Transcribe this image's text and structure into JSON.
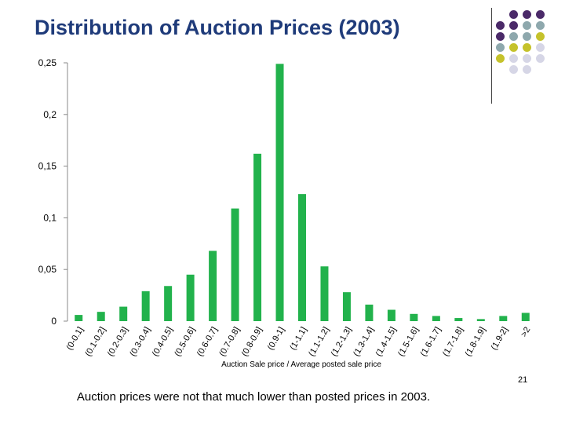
{
  "slide": {
    "title": "Distribution of Auction Prices (2003)",
    "caption": "Auction prices were not that much lower than posted prices in 2003.",
    "page_number": "21"
  },
  "colors": {
    "bar": "#22b24c",
    "title": "#1f3b7a",
    "dot_purple": "#4b2a69",
    "dot_gray": "#8ea8ad",
    "dot_olive": "#c5c22b",
    "dot_lavender": "#d6d6e6"
  },
  "decor_dots": [
    {
      "row": 0,
      "colors": [
        "dot_purple",
        "dot_purple",
        "dot_purple"
      ]
    },
    {
      "row": 1,
      "colors": [
        "dot_purple",
        "dot_purple",
        "dot_gray",
        "dot_gray"
      ]
    },
    {
      "row": 2,
      "colors": [
        "dot_purple",
        "dot_gray",
        "dot_gray",
        "dot_olive"
      ]
    },
    {
      "row": 3,
      "colors": [
        "dot_gray",
        "dot_olive",
        "dot_olive",
        "dot_lavender"
      ]
    },
    {
      "row": 4,
      "colors": [
        "dot_olive",
        "dot_lavender",
        "dot_lavender",
        "dot_lavender"
      ]
    },
    {
      "row": 5,
      "colors": [
        "dot_lavender",
        "dot_lavender"
      ]
    }
  ],
  "chart_data": {
    "type": "bar",
    "title": "",
    "xlabel": "Auction Sale price / Average posted sale price",
    "ylabel": "",
    "ylim": [
      0,
      0.25
    ],
    "yticks": [
      {
        "value": 0,
        "label": "0"
      },
      {
        "value": 0.05,
        "label": "0,05"
      },
      {
        "value": 0.1,
        "label": "0,1"
      },
      {
        "value": 0.15,
        "label": "0,15"
      },
      {
        "value": 0.2,
        "label": "0,2"
      },
      {
        "value": 0.25,
        "label": "0,25"
      }
    ],
    "categories": [
      "(0-0.1]",
      "(0.1-0.2]",
      "(0.2-0.3]",
      "(0.3-0.4]",
      "(0.4-0.5]",
      "(0.5-0.6]",
      "(0.6-0.7]",
      "(0.7-0.8]",
      "(0.8-0.9]",
      "(0.9-1]",
      "(1-1.1]",
      "(1.1-1.2]",
      "(1.2-1.3]",
      "(1.3-1.4]",
      "(1.4-1.5]",
      "(1.5-1.6]",
      "(1.6-1.7]",
      "(1.7-1.8]",
      "(1.8-1.9]",
      "(1.9-2]",
      ">2"
    ],
    "values": [
      0.006,
      0.009,
      0.014,
      0.029,
      0.034,
      0.045,
      0.068,
      0.109,
      0.162,
      0.249,
      0.123,
      0.053,
      0.028,
      0.016,
      0.011,
      0.007,
      0.005,
      0.003,
      0.002,
      0.005,
      0.008
    ]
  }
}
